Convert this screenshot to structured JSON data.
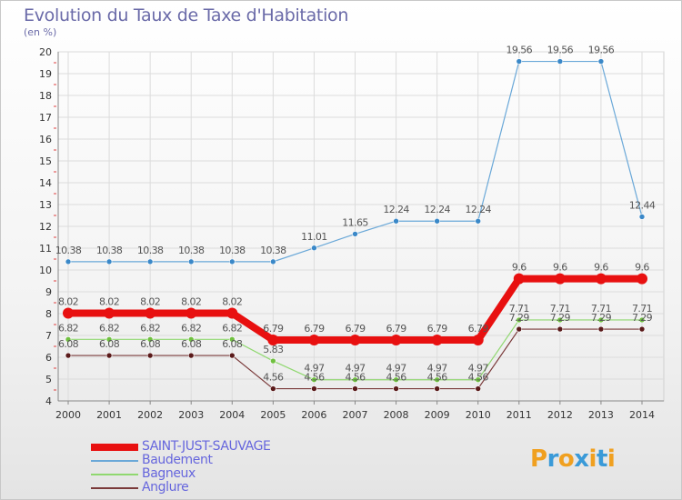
{
  "title": "Evolution du Taux de Taxe d'Habitation",
  "unit_label": "(en %)",
  "logo": {
    "text": "Proxiti",
    "colors": [
      "#f0a020",
      "#3a9ad8",
      "#f0a020",
      "#3a9ad8",
      "#f0a020",
      "#3a9ad8",
      "#f0a020"
    ]
  },
  "chart_data": {
    "type": "line",
    "x": [
      "2000",
      "2001",
      "2002",
      "2003",
      "2004",
      "2005",
      "2006",
      "2007",
      "2008",
      "2009",
      "2010",
      "2011",
      "2012",
      "2013",
      "2014"
    ],
    "ylim": [
      4,
      20
    ],
    "yticks": [
      "4",
      "5",
      "6",
      "7",
      "8",
      "9",
      "10",
      "11",
      "12",
      "13",
      "14",
      "15",
      "16",
      "17",
      "18",
      "19",
      "20"
    ],
    "grid": true,
    "legend_position": "bottom-left",
    "series": [
      {
        "name": "SAINT-JUST-SAUVAGE",
        "color": "#e81010",
        "marker": "#e81010",
        "width": 8,
        "values": [
          8.02,
          8.02,
          8.02,
          8.02,
          8.02,
          6.79,
          6.79,
          6.79,
          6.79,
          6.79,
          6.79,
          9.6,
          9.6,
          9.6,
          9.6
        ],
        "labels": [
          "8.02",
          "8.02",
          "8.02",
          "8.02",
          "8.02",
          "6.79",
          "6.79",
          "6.79",
          "6.79",
          "6.79",
          "6.79",
          "9.6",
          "9.6",
          "9.6",
          "9.6"
        ]
      },
      {
        "name": "Baudement",
        "color": "#6aa8d8",
        "marker": "#3a88c8",
        "width": 1.2,
        "values": [
          10.38,
          10.38,
          10.38,
          10.38,
          10.38,
          10.38,
          11.01,
          11.65,
          12.24,
          12.24,
          12.24,
          19.56,
          19.56,
          19.56,
          12.44
        ],
        "labels": [
          "10.38",
          "10.38",
          "10.38",
          "10.38",
          "10.38",
          "10.38",
          "11.01",
          "11.65",
          "12.24",
          "12.24",
          "12.24",
          "19.56",
          "19.56",
          "19.56",
          "12.44"
        ]
      },
      {
        "name": "Bagneux",
        "color": "#90d870",
        "marker": "#70c040",
        "width": 1.2,
        "values": [
          6.82,
          6.82,
          6.82,
          6.82,
          6.82,
          5.83,
          4.97,
          4.97,
          4.97,
          4.97,
          4.97,
          7.71,
          7.71,
          7.71,
          7.71
        ],
        "labels": [
          "6.82",
          "6.82",
          "6.82",
          "6.82",
          "6.82",
          "5.83",
          "4.97",
          "4.97",
          "4.97",
          "4.97",
          "4.97",
          "7.71",
          "7.71",
          "7.71",
          "7.71"
        ]
      },
      {
        "name": "Anglure",
        "color": "#7a3a3a",
        "marker": "#5a1a1a",
        "width": 1.2,
        "values": [
          6.08,
          6.08,
          6.08,
          6.08,
          6.08,
          4.56,
          4.56,
          4.56,
          4.56,
          4.56,
          4.56,
          7.29,
          7.29,
          7.29,
          7.29
        ],
        "labels": [
          "6.08",
          "6.08",
          "6.08",
          "6.08",
          "6.08",
          "4.56",
          "4.56",
          "4.56",
          "4.56",
          "4.56",
          "4.56",
          "7.29",
          "7.29",
          "7.29",
          "7.29"
        ]
      }
    ]
  }
}
